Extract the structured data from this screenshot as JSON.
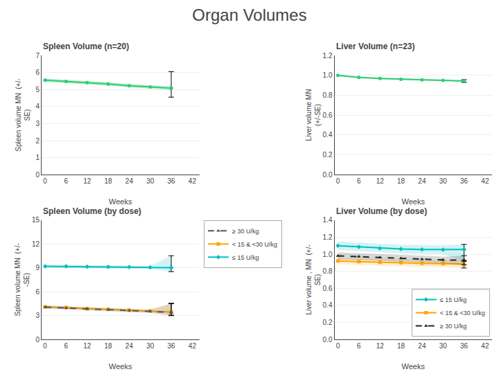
{
  "title": "Organ Volumes",
  "chart_data": [
    {
      "type": "line",
      "title": "Spleen Volume (n=20)",
      "x": [
        0,
        6,
        12,
        18,
        24,
        30,
        36
      ],
      "xlabel": "Weeks",
      "ylabel": "Spleen volume MN  (+/-\nSE)",
      "xlim": [
        -1,
        44
      ],
      "xticks": [
        0,
        6,
        12,
        18,
        24,
        30,
        36,
        42
      ],
      "ylim": [
        0,
        7
      ],
      "yticks": [
        0,
        1,
        2,
        3,
        4,
        5,
        6,
        7
      ],
      "grid": "y",
      "series": [
        {
          "color": "#2ECC71",
          "marker": "circle",
          "line_style": "solid",
          "values": [
            5.55,
            5.48,
            5.4,
            5.32,
            5.22,
            5.15,
            5.08
          ],
          "band_lo": [
            5.45,
            5.38,
            5.3,
            5.22,
            5.12,
            5.05,
            4.98
          ],
          "band_hi": [
            5.65,
            5.58,
            5.5,
            5.42,
            5.32,
            5.25,
            5.18
          ],
          "error_low": 4.55,
          "error_high": 6.05
        }
      ]
    },
    {
      "type": "line",
      "title": "Liver Volume (n=23)",
      "x": [
        0,
        6,
        12,
        18,
        24,
        30,
        36
      ],
      "xlabel": "Weeks",
      "ylabel": "Liver volume MN\n(+/-SE)",
      "xlim": [
        -1,
        44
      ],
      "xticks": [
        0,
        6,
        12,
        18,
        24,
        30,
        36,
        42
      ],
      "ylim": [
        0,
        1.2
      ],
      "yticks": [
        {
          "value": 0,
          "label": "0.0"
        },
        0.2,
        0.4,
        0.6,
        0.8,
        {
          "value": 1,
          "label": "1.0"
        },
        1.2
      ],
      "grid": "y",
      "series": [
        {
          "color": "#2ECC71",
          "marker": "circle",
          "line_style": "solid",
          "values": [
            1.0,
            0.978,
            0.968,
            0.96,
            0.955,
            0.95,
            0.942
          ],
          "band_lo": [
            0.992,
            0.97,
            0.96,
            0.952,
            0.947,
            0.942,
            0.934
          ],
          "band_hi": [
            1.008,
            0.986,
            0.976,
            0.968,
            0.963,
            0.958,
            0.95
          ],
          "error_low": 0.928,
          "error_high": 0.956
        }
      ]
    },
    {
      "type": "line",
      "title": "Spleen Volume (by dose)",
      "x": [
        0,
        6,
        12,
        18,
        24,
        30,
        36
      ],
      "xlabel": "Weeks",
      "ylabel": "Spleen volume MN  (+/-\n-SE)",
      "xlim": [
        -1,
        44
      ],
      "xticks": [
        0,
        6,
        12,
        18,
        24,
        30,
        36,
        42
      ],
      "ylim": [
        0,
        15
      ],
      "yticks": [
        0,
        3,
        6,
        9,
        12,
        15
      ],
      "grid": "y",
      "legend": "upper right",
      "series": [
        {
          "name": "≤ 15 U/kg",
          "color": "#00BFBF",
          "marker": "diamond",
          "line_style": "solid",
          "values": [
            9.2,
            9.18,
            9.15,
            9.12,
            9.1,
            9.05,
            9.02
          ],
          "band_lo": [
            9.0,
            8.98,
            8.95,
            8.92,
            8.9,
            8.85,
            8.52
          ],
          "band_hi": [
            9.4,
            9.38,
            9.35,
            9.32,
            9.3,
            9.25,
            10.52
          ],
          "error_low": 8.52,
          "error_high": 10.52
        },
        {
          "name": "< 15 & <30 U/kg",
          "color": "#FFA500",
          "marker": "square",
          "line_style": "solid",
          "values": [
            4.1,
            4.0,
            3.88,
            3.78,
            3.68,
            3.58,
            3.45
          ],
          "band_lo": [
            3.9,
            3.8,
            3.68,
            3.58,
            3.48,
            3.38,
            3.05
          ],
          "band_hi": [
            4.3,
            4.2,
            4.08,
            3.98,
            3.88,
            3.78,
            4.55
          ],
          "error_low": 3.05,
          "error_high": 4.55
        },
        {
          "name": "≥ 30 U/kg",
          "color": "#555555",
          "marker": "triangle-up",
          "line_style": "dashed",
          "values": [
            4.05,
            3.95,
            3.82,
            3.72,
            3.62,
            3.52,
            3.38
          ],
          "band_lo": [
            3.85,
            3.75,
            3.62,
            3.52,
            3.42,
            3.32,
            2.98
          ],
          "band_hi": [
            4.25,
            4.15,
            4.02,
            3.92,
            3.82,
            3.72,
            4.48
          ],
          "error_low": 2.98,
          "error_high": 4.48
        }
      ]
    },
    {
      "type": "line",
      "title": "Liver Volume (by dose)",
      "x": [
        0,
        6,
        12,
        18,
        24,
        30,
        36
      ],
      "xlabel": "Weeks",
      "ylabel": "Liver volume , MN  (+/-\nSE)",
      "xlim": [
        -1,
        44
      ],
      "xticks": [
        0,
        6,
        12,
        18,
        24,
        30,
        36,
        42
      ],
      "ylim": [
        0,
        1.4
      ],
      "yticks": [
        {
          "value": 0,
          "label": "0.0"
        },
        0.2,
        0.4,
        0.6,
        0.8,
        {
          "value": 1,
          "label": "1.0"
        },
        1.2,
        1.4
      ],
      "grid": "y",
      "legend": "lower right",
      "series": [
        {
          "name": "≤ 15 U/kg",
          "color": "#00BFBF",
          "marker": "diamond",
          "line_style": "solid",
          "values": [
            1.1,
            1.085,
            1.07,
            1.06,
            1.055,
            1.052,
            1.055
          ],
          "band_lo": [
            1.05,
            1.035,
            1.02,
            1.01,
            1.005,
            1.002,
            0.915
          ],
          "band_hi": [
            1.15,
            1.135,
            1.12,
            1.11,
            1.105,
            1.102,
            1.115
          ],
          "error_low": 0.915,
          "error_high": 1.115
        },
        {
          "name": "< 15 & <30 U/kg",
          "color": "#FFA500",
          "marker": "square",
          "line_style": "solid",
          "values": [
            0.92,
            0.912,
            0.905,
            0.9,
            0.892,
            0.888,
            0.882
          ],
          "band_lo": [
            0.88,
            0.872,
            0.865,
            0.86,
            0.852,
            0.848,
            0.838
          ],
          "band_hi": [
            0.96,
            0.952,
            0.945,
            0.94,
            0.932,
            0.928,
            0.928
          ],
          "error_low": 0.838,
          "error_high": 0.928
        },
        {
          "name": "≥ 30 U/kg",
          "color": "#222222",
          "marker": "triangle-up",
          "line_style": "dashed",
          "values": [
            0.98,
            0.972,
            0.962,
            0.952,
            0.942,
            0.932,
            0.93
          ],
          "band_lo": [
            0.94,
            0.932,
            0.922,
            0.912,
            0.902,
            0.892,
            0.875
          ],
          "band_hi": [
            1.02,
            1.012,
            1.002,
            0.992,
            0.982,
            0.972,
            0.982
          ],
          "error_low": 0.875,
          "error_high": 0.982
        }
      ]
    }
  ]
}
